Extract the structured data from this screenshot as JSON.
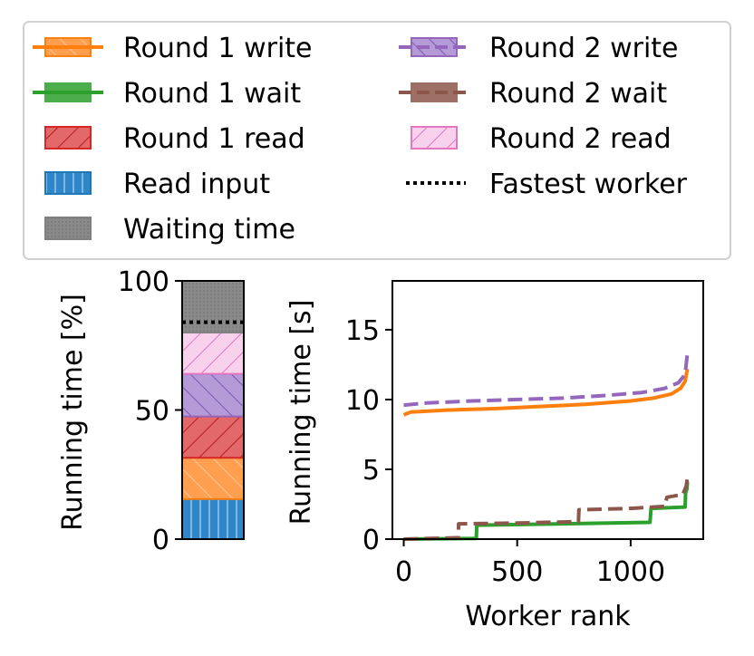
{
  "chart_data": [
    {
      "type": "bar",
      "stacked": true,
      "ylabel": "Running time [%]",
      "ylim": [
        0,
        100
      ],
      "yticks": [
        0,
        50,
        100
      ],
      "segments": [
        {
          "name": "Read input",
          "value": 15.5,
          "color": "#1f77b4",
          "hatch": "vertical"
        },
        {
          "name": "Round 1 write",
          "value": 16,
          "color": "#ff7f0e",
          "hatch": "slash"
        },
        {
          "name": "Round 1 read",
          "value": 16,
          "color": "#d62728",
          "hatch": "backslash"
        },
        {
          "name": "Round 2 write",
          "value": 16.5,
          "color": "#9467bd",
          "hatch": "slash"
        },
        {
          "name": "Round 2 read",
          "value": 16,
          "color": "#f2b5e0",
          "hatch": "backslash",
          "stroke": "#e377c2"
        },
        {
          "name": "Waiting time",
          "value": 20,
          "color": "#7f7f7f",
          "hatch": "dots"
        }
      ],
      "fastest_worker": 84
    },
    {
      "type": "line",
      "xlabel": "Worker rank",
      "ylabel": "Running time [s]",
      "xlim": [
        -50,
        1320
      ],
      "ylim": [
        0,
        18.5
      ],
      "xticks": [
        0,
        500,
        1000
      ],
      "yticks": [
        0,
        5,
        10,
        15
      ],
      "series": [
        {
          "name": "Round 1 write",
          "color": "#ff7f0e",
          "dash": "solid",
          "points": [
            [
              0,
              8.9
            ],
            [
              30,
              9.1
            ],
            [
              200,
              9.25
            ],
            [
              400,
              9.35
            ],
            [
              600,
              9.5
            ],
            [
              800,
              9.65
            ],
            [
              1000,
              9.9
            ],
            [
              1100,
              10.1
            ],
            [
              1180,
              10.4
            ],
            [
              1220,
              10.8
            ],
            [
              1240,
              11.3
            ],
            [
              1250,
              12.2
            ]
          ]
        },
        {
          "name": "Round 2 write",
          "color": "#9467bd",
          "dash": "dashed",
          "points": [
            [
              0,
              9.6
            ],
            [
              100,
              9.75
            ],
            [
              300,
              9.9
            ],
            [
              500,
              10.0
            ],
            [
              700,
              10.1
            ],
            [
              900,
              10.3
            ],
            [
              1050,
              10.5
            ],
            [
              1150,
              10.8
            ],
            [
              1210,
              11.2
            ],
            [
              1240,
              11.8
            ],
            [
              1250,
              13.3
            ]
          ]
        },
        {
          "name": "Round 1 wait",
          "color": "#2ca02c",
          "dash": "solid",
          "points": [
            [
              0,
              0
            ],
            [
              320,
              0.05
            ],
            [
              322,
              1.0
            ],
            [
              700,
              1.1
            ],
            [
              1085,
              1.2
            ],
            [
              1090,
              2.2
            ],
            [
              1240,
              2.3
            ],
            [
              1242,
              3.3
            ],
            [
              1248,
              3.6
            ],
            [
              1250,
              4.1
            ]
          ]
        },
        {
          "name": "Round 2 wait",
          "color": "#8c564b",
          "dash": "dashed",
          "points": [
            [
              0,
              0
            ],
            [
              240,
              0.1
            ],
            [
              242,
              1.1
            ],
            [
              500,
              1.15
            ],
            [
              770,
              1.25
            ],
            [
              772,
              2.1
            ],
            [
              1000,
              2.2
            ],
            [
              1150,
              2.35
            ],
            [
              1160,
              3.0
            ],
            [
              1230,
              3.2
            ],
            [
              1245,
              3.8
            ],
            [
              1250,
              4.4
            ]
          ]
        }
      ]
    }
  ],
  "legend": {
    "items": [
      {
        "label": "Round 1 write",
        "kind": "hatch-line",
        "color": "#ff7f0e",
        "hatch": "slash",
        "dash": "solid"
      },
      {
        "label": "Round 2 write",
        "kind": "hatch-line",
        "color": "#9467bd",
        "hatch": "slash",
        "dash": "dashed"
      },
      {
        "label": "Round 1 wait",
        "kind": "hatch-line",
        "color": "#2ca02c",
        "hatch": "none",
        "dash": "solid"
      },
      {
        "label": "Round 2 wait",
        "kind": "hatch-line",
        "color": "#8c564b",
        "hatch": "none",
        "dash": "dashed"
      },
      {
        "label": "Round 1 read",
        "kind": "patch",
        "color": "#d62728",
        "hatch": "backslash"
      },
      {
        "label": "Round 2 read",
        "kind": "patch",
        "color": "#f2b5e0",
        "hatch": "backslash",
        "stroke": "#e377c2"
      },
      {
        "label": "Read input",
        "kind": "patch",
        "color": "#1f77b4",
        "hatch": "vertical"
      },
      {
        "label": "Fastest worker",
        "kind": "dotted",
        "color": "#000000"
      },
      {
        "label": "Waiting time",
        "kind": "patch",
        "color": "#7f7f7f",
        "hatch": "dots"
      }
    ]
  }
}
